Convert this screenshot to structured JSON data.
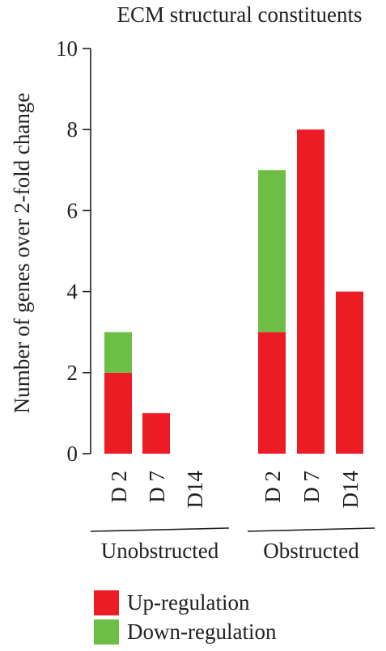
{
  "chart_data": {
    "type": "bar",
    "stacked": true,
    "title": "ECM structural constituents",
    "ylabel": "Number of genes over 2-fold change",
    "xlabel": "",
    "ylim": [
      0,
      10
    ],
    "yticks": [
      0,
      2,
      4,
      6,
      8,
      10
    ],
    "groups": [
      {
        "label": "Unobstructed",
        "categories": [
          "D 2",
          "D 7",
          "D14"
        ]
      },
      {
        "label": "Obstructed",
        "categories": [
          "D 2",
          "D 7",
          "D14"
        ]
      }
    ],
    "series": [
      {
        "name": "Up-regulation",
        "color": "#ed1c24",
        "values": [
          2,
          1,
          0,
          3,
          8,
          4
        ]
      },
      {
        "name": "Down-regulation",
        "color": "#6cbf44",
        "values": [
          1,
          0,
          0,
          4,
          0,
          0
        ]
      }
    ],
    "legend_position": "bottom-left",
    "grid": false
  }
}
